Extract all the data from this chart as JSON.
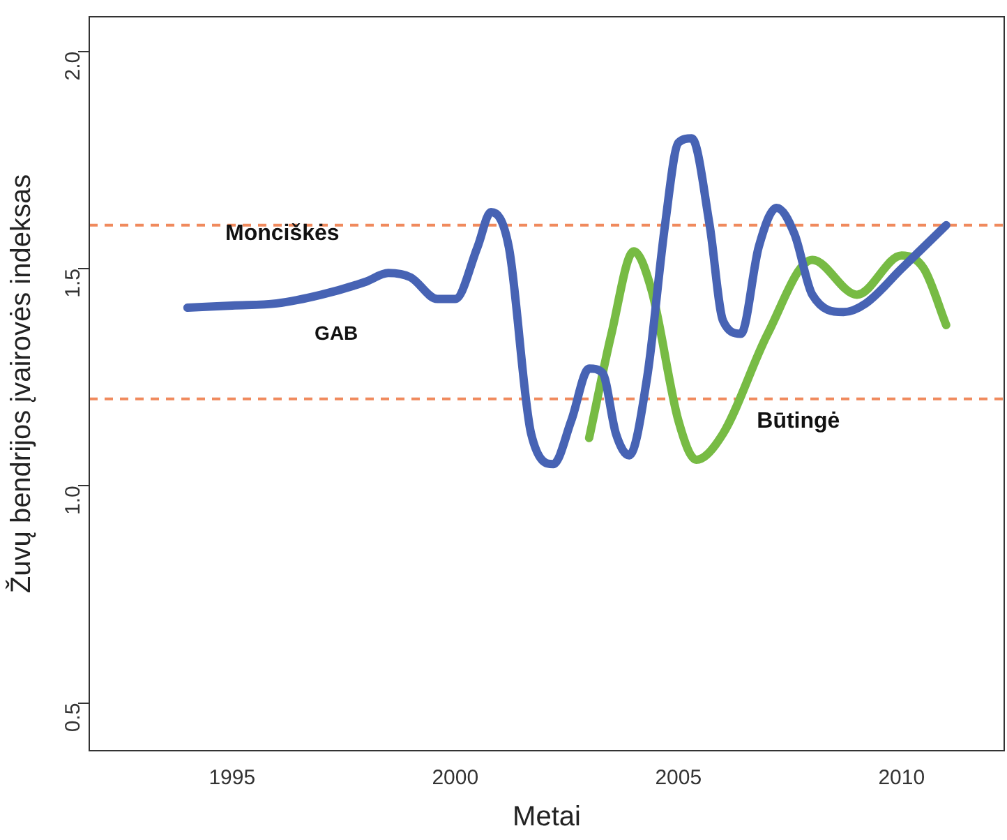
{
  "chart_data": {
    "type": "line",
    "xlabel": "Metai",
    "ylabel": "Žuvų bendrijos įvairovės indeksas",
    "xlim": [
      1991.8,
      2012.3
    ],
    "xticks": [
      1995,
      2000,
      2005,
      2010
    ],
    "ylim": [
      0.39,
      2.08
    ],
    "yticks": [
      {
        "value": 0.5,
        "label": "0.5"
      },
      {
        "value": 1,
        "label": "1.0"
      },
      {
        "value": 1.5,
        "label": "1.5"
      },
      {
        "value": 2,
        "label": "2.0"
      }
    ],
    "grid": false,
    "legend": false,
    "marker": "none",
    "line_style": "solid",
    "series": [
      {
        "name": "Monciškės",
        "color": "#4763b4",
        "x": [
          1994,
          1995,
          1996,
          1997,
          1998,
          1998.5,
          1999,
          1999.6,
          2000,
          2000.5,
          2000.8,
          2001.2,
          2001.7,
          2002.2,
          2002.6,
          2003,
          2003.3,
          2003.6,
          2003.9,
          2004.3,
          2004.7,
          2005,
          2005.3,
          2005.7,
          2006,
          2006.4,
          2006.8,
          2007.2,
          2007.6,
          2008,
          2008.7,
          2009.2,
          2010,
          2011
        ],
        "values": [
          1.41,
          1.415,
          1.42,
          1.44,
          1.47,
          1.49,
          1.48,
          1.43,
          1.43,
          1.55,
          1.63,
          1.55,
          1.12,
          1.05,
          1.15,
          1.27,
          1.26,
          1.12,
          1.07,
          1.25,
          1.6,
          1.79,
          1.8,
          1.6,
          1.38,
          1.35,
          1.55,
          1.64,
          1.58,
          1.44,
          1.4,
          1.42,
          1.5,
          1.6
        ]
      },
      {
        "name": "Būtingė",
        "color": "#77bb44",
        "x": [
          2003,
          2003.5,
          2004,
          2004.4,
          2005,
          2005.4,
          2006,
          2007,
          2008,
          2009,
          2010,
          2010.5,
          2011
        ],
        "values": [
          1.11,
          1.35,
          1.54,
          1.45,
          1.15,
          1.06,
          1.12,
          1.35,
          1.52,
          1.44,
          1.53,
          1.5,
          1.37
        ]
      }
    ],
    "ref_lines": [
      {
        "axis": "y",
        "value": 1.6,
        "color": "#f08a5d",
        "line_style": "dashed"
      },
      {
        "axis": "y",
        "value": 1.2,
        "color": "#f08a5d",
        "line_style": "dashed"
      }
    ],
    "annotations": [
      "GAB"
    ]
  }
}
